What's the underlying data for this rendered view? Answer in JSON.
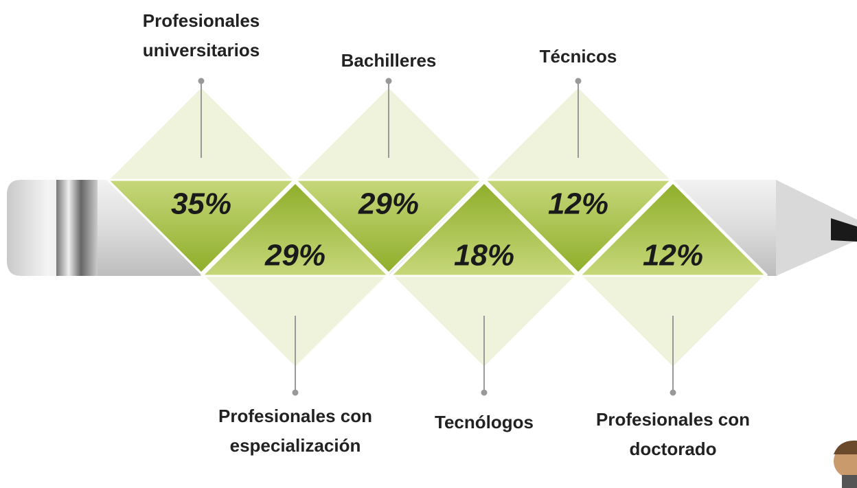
{
  "items": [
    {
      "label": "Profesionales universitarios",
      "percent": "35%"
    },
    {
      "label": "Profesionales con especialización",
      "percent": "29%"
    },
    {
      "label": "Bachilleres",
      "percent": "29%"
    },
    {
      "label": "Tecnólogos",
      "percent": "18%"
    },
    {
      "label": "Técnicos",
      "percent": "12%"
    },
    {
      "label": "Profesionales con doctorado",
      "percent": "12%"
    }
  ]
}
